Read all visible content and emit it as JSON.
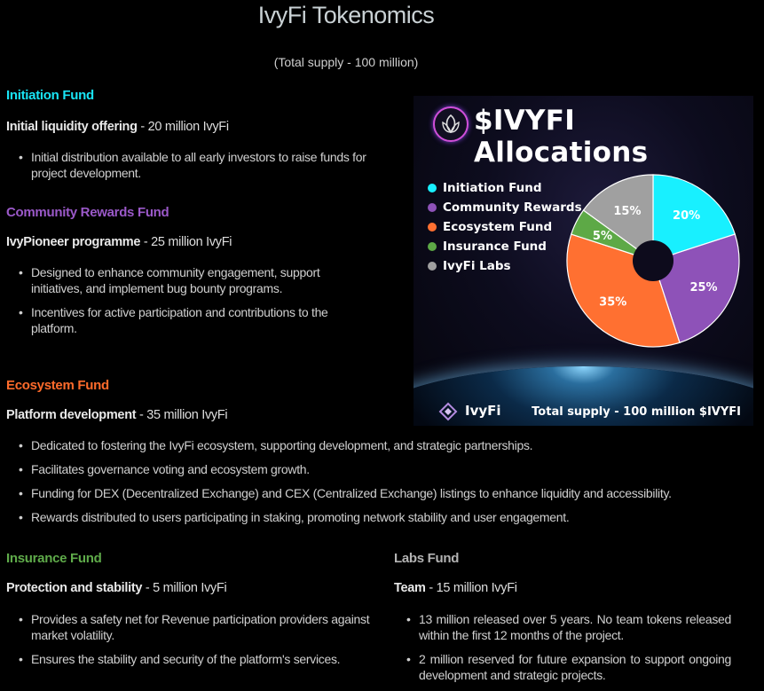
{
  "header": {
    "title": "IvyFi Tokenomics",
    "subtitle": "(Total supply - 100 million)"
  },
  "sections": {
    "initiation": {
      "heading": "Initiation Fund",
      "color": "#19e4f5",
      "item_bold": "Initial liquidity offering",
      "item_rest": " - 20 million IvyFi",
      "bullets": [
        "Initial distribution available to all early investors to raise funds for project development."
      ]
    },
    "community": {
      "heading": "Community Rewards Fund",
      "color": "#9b59c9",
      "item_bold": "IvyPioneer programme",
      "item_rest": " - 25 million IvyFi",
      "bullets": [
        "Designed to enhance community engagement, support initiatives, and implement bug bounty programs.",
        "Incentives for active participation and contributions to the platform."
      ]
    },
    "ecosystem": {
      "heading": "Ecosystem Fund",
      "color": "#ff6b2b",
      "item_bold": "Platform development",
      "item_rest": " - 35 million IvyFi",
      "bullets": [
        "Dedicated to fostering the IvyFi ecosystem, supporting development, and strategic partnerships.",
        "Facilitates governance voting and ecosystem growth.",
        "Funding for DEX (Decentralized Exchange) and CEX (Centralized Exchange) listings to enhance liquidity and accessibility.",
        "Rewards distributed to users participating in staking, promoting network stability and user engagement."
      ]
    },
    "insurance": {
      "heading": "Insurance Fund",
      "color": "#5fab4a",
      "item_bold": "Protection and stability",
      "item_rest": " - 5 million IvyFi",
      "bullets": [
        "Provides a safety net for Revenue participation providers against market volatility.",
        "Ensures the stability and security of the platform's services."
      ]
    },
    "labs": {
      "heading": "Labs Fund",
      "color": "#b3b3b3",
      "item_bold": "Team",
      "item_rest": " - 15 million IvyFi",
      "bullets": [
        "13 million released over 5 years. No team tokens released within the first 12 months of the project.",
        "2 million reserved for future expansion to support ongoing development and strategic projects."
      ]
    }
  },
  "poster": {
    "title": "$IVYFI Allocations",
    "brand": "IvyFi",
    "total_supply": "Total supply - 100 million $IVYFI"
  },
  "chart_data": {
    "type": "pie",
    "title": "$IVYFI Allocations",
    "categories": [
      "Initiation Fund",
      "Community Rewards",
      "Ecosystem Fund",
      "Insurance Fund",
      "IvyFi Labs"
    ],
    "values": [
      20,
      25,
      35,
      5,
      15
    ],
    "labels": [
      "20%",
      "25%",
      "35%",
      "5%",
      "15%"
    ],
    "colors": [
      "#18f0ff",
      "#8e52b8",
      "#ff7031",
      "#5da946",
      "#a0a0a0"
    ],
    "legend_position": "left",
    "donut": true
  }
}
